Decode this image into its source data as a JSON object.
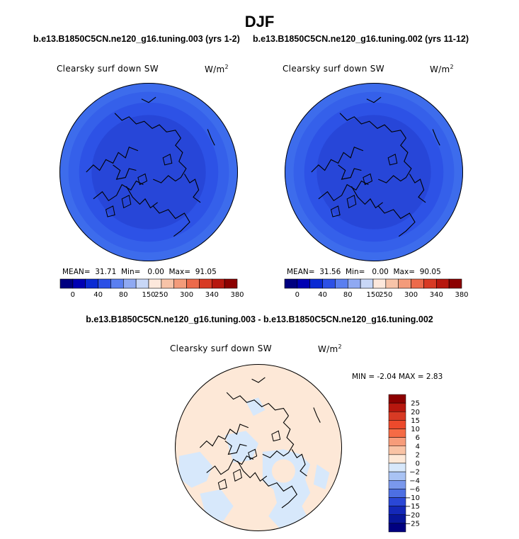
{
  "figure": {
    "title": "DJF"
  },
  "chart_data": [
    {
      "type": "heatmap",
      "panel": "case-1",
      "title": "b.e13.B1850C5CN.ne120_g16.tuning.003 (yrs 1-2)",
      "variable": "Clearsky surf down SW",
      "units": "W/m",
      "units_exp": "2",
      "projection": "north polar stereographic",
      "stats": {
        "mean_label": "MEAN=",
        "mean": "31.71",
        "min_label": "Min=",
        "min": "0.00",
        "max_label": "Max=",
        "max": "91.05"
      },
      "colorbar": {
        "orientation": "horizontal",
        "levels": [
          "0",
          "40",
          "80",
          "150",
          "250",
          "300",
          "340",
          "380"
        ],
        "colors": [
          "#000080",
          "#0000b3",
          "#0a2ad3",
          "#2c50e6",
          "#5a7ff0",
          "#8fa9f2",
          "#c8d7f7",
          "#fde8dc",
          "#f7c3a8",
          "#f39b7a",
          "#ec6a4b",
          "#d83a24",
          "#b7170e",
          "#8c0000"
        ]
      },
      "field_colors": [
        "#2746d8",
        "#2d52e6",
        "#3560ea",
        "#3d6cec"
      ]
    },
    {
      "type": "heatmap",
      "panel": "case-2",
      "title": "b.e13.B1850C5CN.ne120_g16.tuning.002 (yrs 11-12)",
      "variable": "Clearsky surf down SW",
      "units": "W/m",
      "units_exp": "2",
      "projection": "north polar stereographic",
      "stats": {
        "mean_label": "MEAN=",
        "mean": "31.56",
        "min_label": "Min=",
        "min": "0.00",
        "max_label": "Max=",
        "max": "90.05"
      },
      "colorbar": {
        "orientation": "horizontal",
        "levels": [
          "0",
          "40",
          "80",
          "150",
          "250",
          "300",
          "340",
          "380"
        ],
        "colors": [
          "#000080",
          "#0000b3",
          "#0a2ad3",
          "#2c50e6",
          "#5a7ff0",
          "#8fa9f2",
          "#c8d7f7",
          "#fde8dc",
          "#f7c3a8",
          "#f39b7a",
          "#ec6a4b",
          "#d83a24",
          "#b7170e",
          "#8c0000"
        ]
      },
      "field_colors": [
        "#2746d8",
        "#2d52e6",
        "#3560ea",
        "#3d6cec"
      ]
    },
    {
      "type": "heatmap",
      "panel": "difference",
      "title": "b.e13.B1850C5CN.ne120_g16.tuning.003 - b.e13.B1850C5CN.ne120_g16.tuning.002",
      "variable": "Clearsky surf down SW",
      "units": "W/m",
      "units_exp": "2",
      "projection": "north polar stereographic",
      "stats_text": "MIN = -2.04 MAX = 2.83",
      "stats": {
        "min": -2.04,
        "max": 2.83
      },
      "colorbar": {
        "orientation": "vertical",
        "levels": [
          "25",
          "20",
          "15",
          "10",
          "6",
          "4",
          "2",
          "0",
          "−2",
          "−4",
          "−6",
          "−10",
          "−15",
          "−20",
          "−25"
        ],
        "colors": [
          "#8c0000",
          "#b7170e",
          "#d83a24",
          "#ec4a2c",
          "#f56b45",
          "#f79c7a",
          "#f9c3a5",
          "#fde8d7",
          "#d7e8fb",
          "#a9c3f4",
          "#7a98ec",
          "#4d6fe3",
          "#2a47d6",
          "#1428b8",
          "#08169a",
          "#000080"
        ]
      },
      "field_colors": {
        "positive": "#fde8d7",
        "negative": "#d7e8fb"
      }
    }
  ]
}
